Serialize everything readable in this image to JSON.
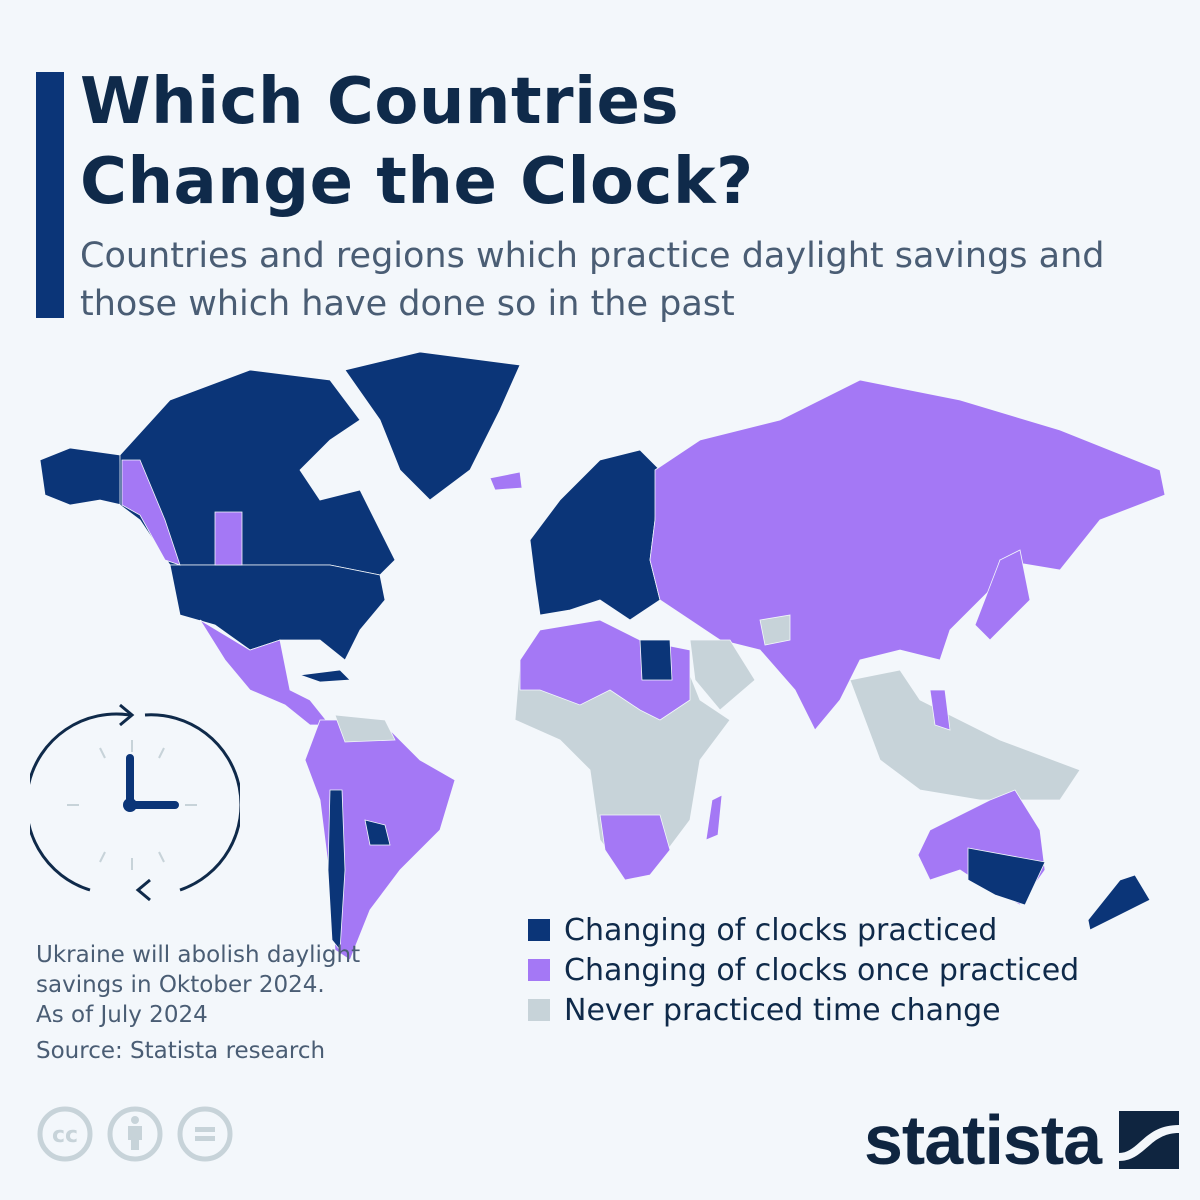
{
  "header": {
    "title_line1": "Which Countries",
    "title_line2": "Change the Clock?",
    "subtitle": "Countries and regions which practice daylight savings and those which have done so in the past"
  },
  "colors": {
    "practiced": "#0b3578",
    "once_practiced": "#a478f5",
    "never": "#c7d3d9",
    "background": "#f3f7fb"
  },
  "legend": [
    {
      "label": "Changing of clocks practiced",
      "color": "#0b3578"
    },
    {
      "label": "Changing of clocks once practiced",
      "color": "#a478f5"
    },
    {
      "label": "Never practiced time change",
      "color": "#c7d3d9"
    }
  ],
  "footer": {
    "note": "Ukraine will abolish daylight savings in Oktober 2024.",
    "as_of": "As of July 2024",
    "source": "Source: Statista research",
    "brand": "statista"
  },
  "icons": [
    "clock-icon",
    "cc-icon",
    "attribution-icon",
    "no-derivatives-icon",
    "statista-logo-icon"
  ]
}
